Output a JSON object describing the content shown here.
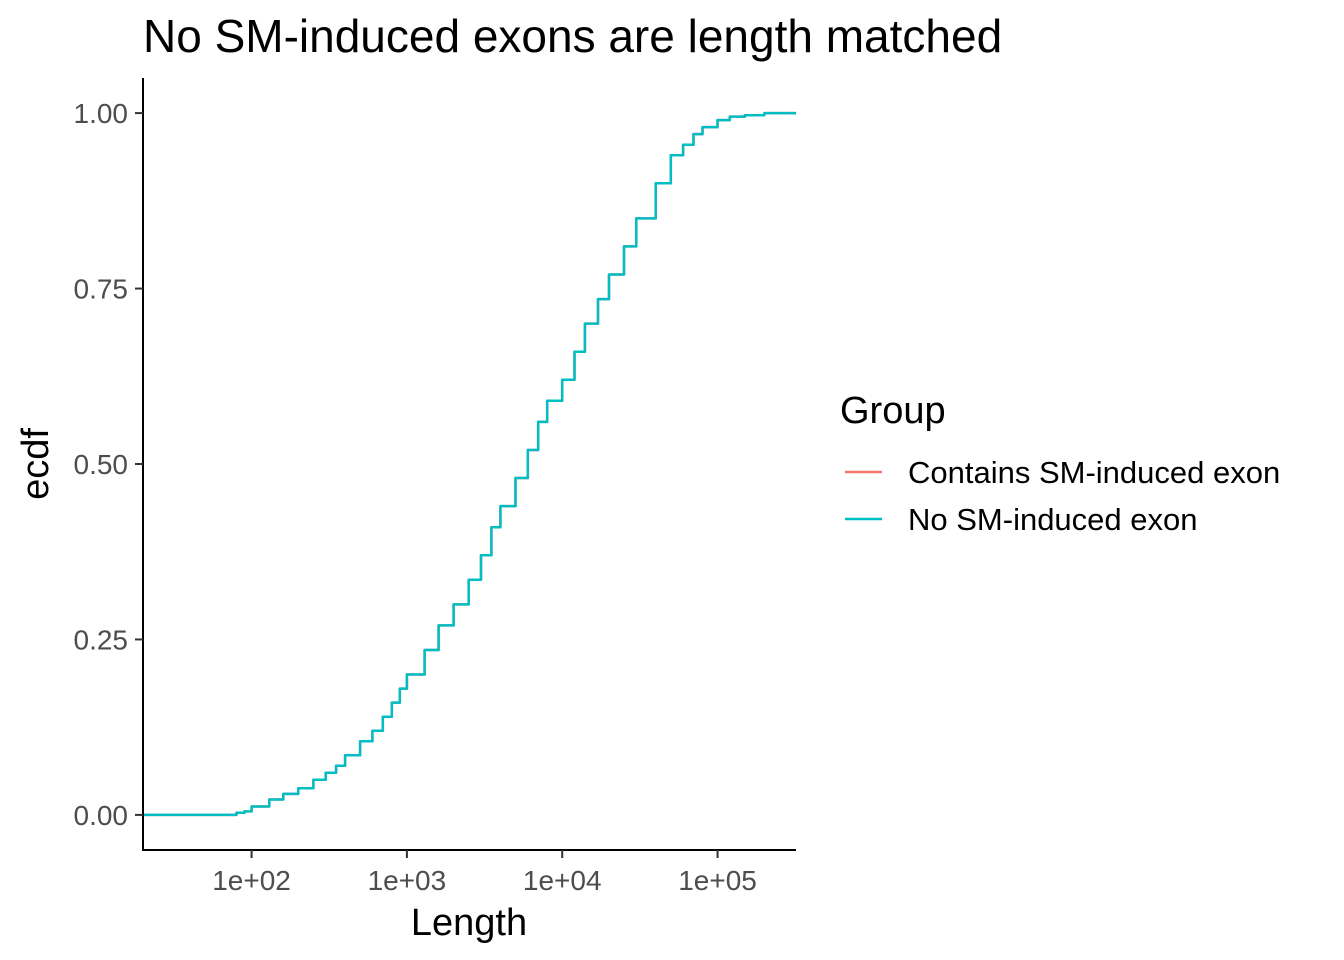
{
  "chart_data": {
    "type": "line",
    "title": "No SM-induced exons are length matched",
    "xlabel": "Length",
    "ylabel": "ecdf",
    "x_scale": "log10",
    "xlim": [
      20,
      320000
    ],
    "ylim": [
      -0.05,
      1.05
    ],
    "x_ticks": [
      {
        "value": 100,
        "label": "1e+02"
      },
      {
        "value": 1000,
        "label": "1e+03"
      },
      {
        "value": 10000,
        "label": "1e+04"
      },
      {
        "value": 100000,
        "label": "1e+05"
      }
    ],
    "y_ticks": [
      {
        "value": 0,
        "label": "0.00"
      },
      {
        "value": 0.25,
        "label": "0.25"
      },
      {
        "value": 0.5,
        "label": "0.50"
      },
      {
        "value": 0.75,
        "label": "0.75"
      },
      {
        "value": 1,
        "label": "1.00"
      }
    ],
    "grid": false,
    "legend": {
      "title": "Group",
      "position": "right",
      "entries": [
        {
          "name": "Contains SM-induced exon",
          "color": "#F8766D"
        },
        {
          "name": "No SM-induced exon",
          "color": "#00BFC4"
        }
      ]
    },
    "series": [
      {
        "name": "Contains SM-induced exon",
        "color": "#F8766D",
        "points": [
          [
            20,
            0.0
          ],
          [
            50,
            0.0
          ],
          [
            70,
            0.0
          ],
          [
            80,
            0.003
          ],
          [
            90,
            0.005
          ],
          [
            100,
            0.012
          ],
          [
            130,
            0.022
          ],
          [
            160,
            0.03
          ],
          [
            200,
            0.038
          ],
          [
            250,
            0.05
          ],
          [
            300,
            0.06
          ],
          [
            350,
            0.07
          ],
          [
            400,
            0.085
          ],
          [
            500,
            0.105
          ],
          [
            600,
            0.12
          ],
          [
            700,
            0.14
          ],
          [
            800,
            0.16
          ],
          [
            900,
            0.18
          ],
          [
            1000,
            0.2
          ],
          [
            1300,
            0.235
          ],
          [
            1600,
            0.27
          ],
          [
            2000,
            0.3
          ],
          [
            2500,
            0.335
          ],
          [
            3000,
            0.37
          ],
          [
            3500,
            0.41
          ],
          [
            4000,
            0.44
          ],
          [
            5000,
            0.48
          ],
          [
            6000,
            0.52
          ],
          [
            7000,
            0.56
          ],
          [
            8000,
            0.59
          ],
          [
            10000,
            0.62
          ],
          [
            12000,
            0.66
          ],
          [
            14000,
            0.7
          ],
          [
            17000,
            0.735
          ],
          [
            20000,
            0.77
          ],
          [
            25000,
            0.81
          ],
          [
            30000,
            0.85
          ],
          [
            40000,
            0.9
          ],
          [
            50000,
            0.94
          ],
          [
            60000,
            0.955
          ],
          [
            70000,
            0.97
          ],
          [
            80000,
            0.98
          ],
          [
            100000,
            0.99
          ],
          [
            120000,
            0.995
          ],
          [
            150000,
            0.997
          ],
          [
            200000,
            1.0
          ],
          [
            320000,
            1.0
          ]
        ]
      },
      {
        "name": "No SM-induced exon",
        "color": "#00BFC4",
        "points": [
          [
            20,
            0.0
          ],
          [
            50,
            0.0
          ],
          [
            70,
            0.0
          ],
          [
            80,
            0.003
          ],
          [
            90,
            0.005
          ],
          [
            100,
            0.012
          ],
          [
            130,
            0.022
          ],
          [
            160,
            0.03
          ],
          [
            200,
            0.038
          ],
          [
            250,
            0.05
          ],
          [
            300,
            0.06
          ],
          [
            350,
            0.07
          ],
          [
            400,
            0.085
          ],
          [
            500,
            0.105
          ],
          [
            600,
            0.12
          ],
          [
            700,
            0.14
          ],
          [
            800,
            0.16
          ],
          [
            900,
            0.18
          ],
          [
            1000,
            0.2
          ],
          [
            1300,
            0.235
          ],
          [
            1600,
            0.27
          ],
          [
            2000,
            0.3
          ],
          [
            2500,
            0.335
          ],
          [
            3000,
            0.37
          ],
          [
            3500,
            0.41
          ],
          [
            4000,
            0.44
          ],
          [
            5000,
            0.48
          ],
          [
            6000,
            0.52
          ],
          [
            7000,
            0.56
          ],
          [
            8000,
            0.59
          ],
          [
            10000,
            0.62
          ],
          [
            12000,
            0.66
          ],
          [
            14000,
            0.7
          ],
          [
            17000,
            0.735
          ],
          [
            20000,
            0.77
          ],
          [
            25000,
            0.81
          ],
          [
            30000,
            0.85
          ],
          [
            40000,
            0.9
          ],
          [
            50000,
            0.94
          ],
          [
            60000,
            0.955
          ],
          [
            70000,
            0.97
          ],
          [
            80000,
            0.98
          ],
          [
            100000,
            0.99
          ],
          [
            120000,
            0.995
          ],
          [
            150000,
            0.997
          ],
          [
            200000,
            1.0
          ],
          [
            320000,
            1.0
          ]
        ]
      }
    ]
  }
}
